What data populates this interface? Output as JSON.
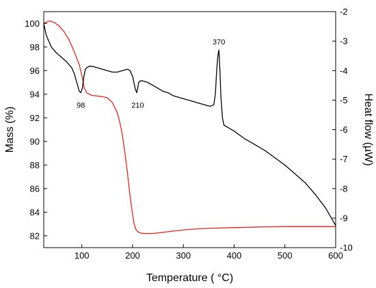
{
  "chart_data": {
    "type": "line",
    "xlabel": "Temperature ( °C)",
    "ylabel_left": "Mass (%)",
    "ylabel_right": "Heat flow (µW)",
    "xlim": [
      25,
      600
    ],
    "ylim_left": [
      81,
      101
    ],
    "ylim_right": [
      -10,
      -2
    ],
    "x_ticks": [
      100,
      200,
      300,
      400,
      500,
      600
    ],
    "y_left_ticks": [
      82,
      84,
      86,
      88,
      90,
      92,
      94,
      96,
      98,
      100
    ],
    "y_right_ticks": [
      -10,
      -9,
      -8,
      -7,
      -6,
      -5,
      -4,
      -3,
      -2
    ],
    "grid": false,
    "series": [
      {
        "axis": "left",
        "color": "#e8231d",
        "x": [
          25,
          35,
          45,
          55,
          65,
          75,
          85,
          95,
          100,
          105,
          110,
          120,
          130,
          140,
          150,
          160,
          170,
          175,
          180,
          185,
          190,
          195,
          200,
          203,
          206,
          209,
          212,
          215,
          220,
          230,
          240,
          260,
          280,
          300,
          330,
          360,
          400,
          450,
          500,
          550,
          600
        ],
        "values": [
          100.0,
          100.2,
          100.1,
          99.8,
          99.3,
          98.6,
          97.6,
          96.5,
          95.6,
          94.5,
          94.1,
          93.9,
          93.85,
          93.8,
          93.7,
          93.3,
          92.4,
          91.6,
          90.5,
          89.0,
          87.3,
          85.4,
          83.8,
          83.0,
          82.6,
          82.4,
          82.3,
          82.25,
          82.2,
          82.18,
          82.2,
          82.3,
          82.4,
          82.5,
          82.6,
          82.65,
          82.7,
          82.75,
          82.78,
          82.78,
          82.78
        ]
      },
      {
        "axis": "right",
        "color": "#000000",
        "x": [
          25,
          30,
          40,
          50,
          60,
          70,
          80,
          85,
          90,
          95,
          98,
          101,
          104,
          107,
          110,
          115,
          120,
          130,
          140,
          150,
          160,
          170,
          180,
          190,
          195,
          200,
          205,
          208,
          210,
          212,
          215,
          220,
          230,
          240,
          250,
          260,
          270,
          280,
          290,
          300,
          310,
          320,
          330,
          340,
          350,
          355,
          360,
          363,
          366,
          368,
          370,
          372,
          374,
          377,
          380,
          390,
          400,
          420,
          440,
          460,
          480,
          500,
          520,
          540,
          560,
          580,
          600
        ],
        "values": [
          -2.4,
          -2.8,
          -3.2,
          -3.4,
          -3.55,
          -3.7,
          -3.9,
          -4.1,
          -4.4,
          -4.7,
          -4.75,
          -4.6,
          -4.2,
          -3.95,
          -3.9,
          -3.85,
          -3.85,
          -3.9,
          -3.95,
          -4.0,
          -4.05,
          -4.05,
          -4.0,
          -3.95,
          -4.0,
          -4.2,
          -4.6,
          -4.75,
          -4.6,
          -4.4,
          -4.35,
          -4.35,
          -4.4,
          -4.5,
          -4.6,
          -4.7,
          -4.75,
          -4.85,
          -4.9,
          -4.95,
          -5.0,
          -5.05,
          -5.1,
          -5.15,
          -5.2,
          -5.2,
          -5.15,
          -4.8,
          -3.9,
          -3.5,
          -3.3,
          -4.0,
          -4.9,
          -5.6,
          -5.85,
          -5.95,
          -6.05,
          -6.3,
          -6.5,
          -6.7,
          -6.95,
          -7.2,
          -7.5,
          -7.8,
          -8.2,
          -8.65,
          -9.25
        ]
      }
    ],
    "annotations": [
      {
        "text": "98",
        "x": 98,
        "y_right": -4.75
      },
      {
        "text": "210",
        "x": 210,
        "y_right": -4.75
      },
      {
        "text": "370",
        "x": 370,
        "y_right": -3.3
      }
    ]
  }
}
